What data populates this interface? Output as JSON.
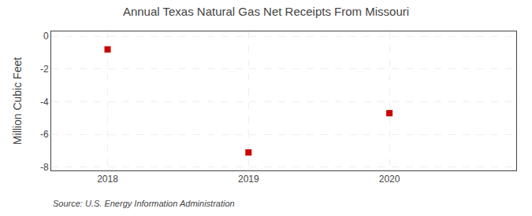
{
  "chart_data": {
    "type": "scatter",
    "title": "Annual Texas Natural Gas Net Receipts From Missouri",
    "ylabel": "Million Cubic Feet",
    "source": "Source: U.S. Energy Information Administration",
    "x": [
      2018,
      2019,
      2020
    ],
    "values": [
      -0.8,
      -7.1,
      -4.7
    ],
    "color": "#cc0000",
    "marker": "square",
    "xlim": [
      2017.6,
      2020.9
    ],
    "ylim": [
      -8.2,
      0.3
    ],
    "xticks": [
      2018,
      2019,
      2020
    ],
    "yticks": [
      0,
      -2,
      -4,
      -6,
      -8
    ],
    "grid": true
  }
}
